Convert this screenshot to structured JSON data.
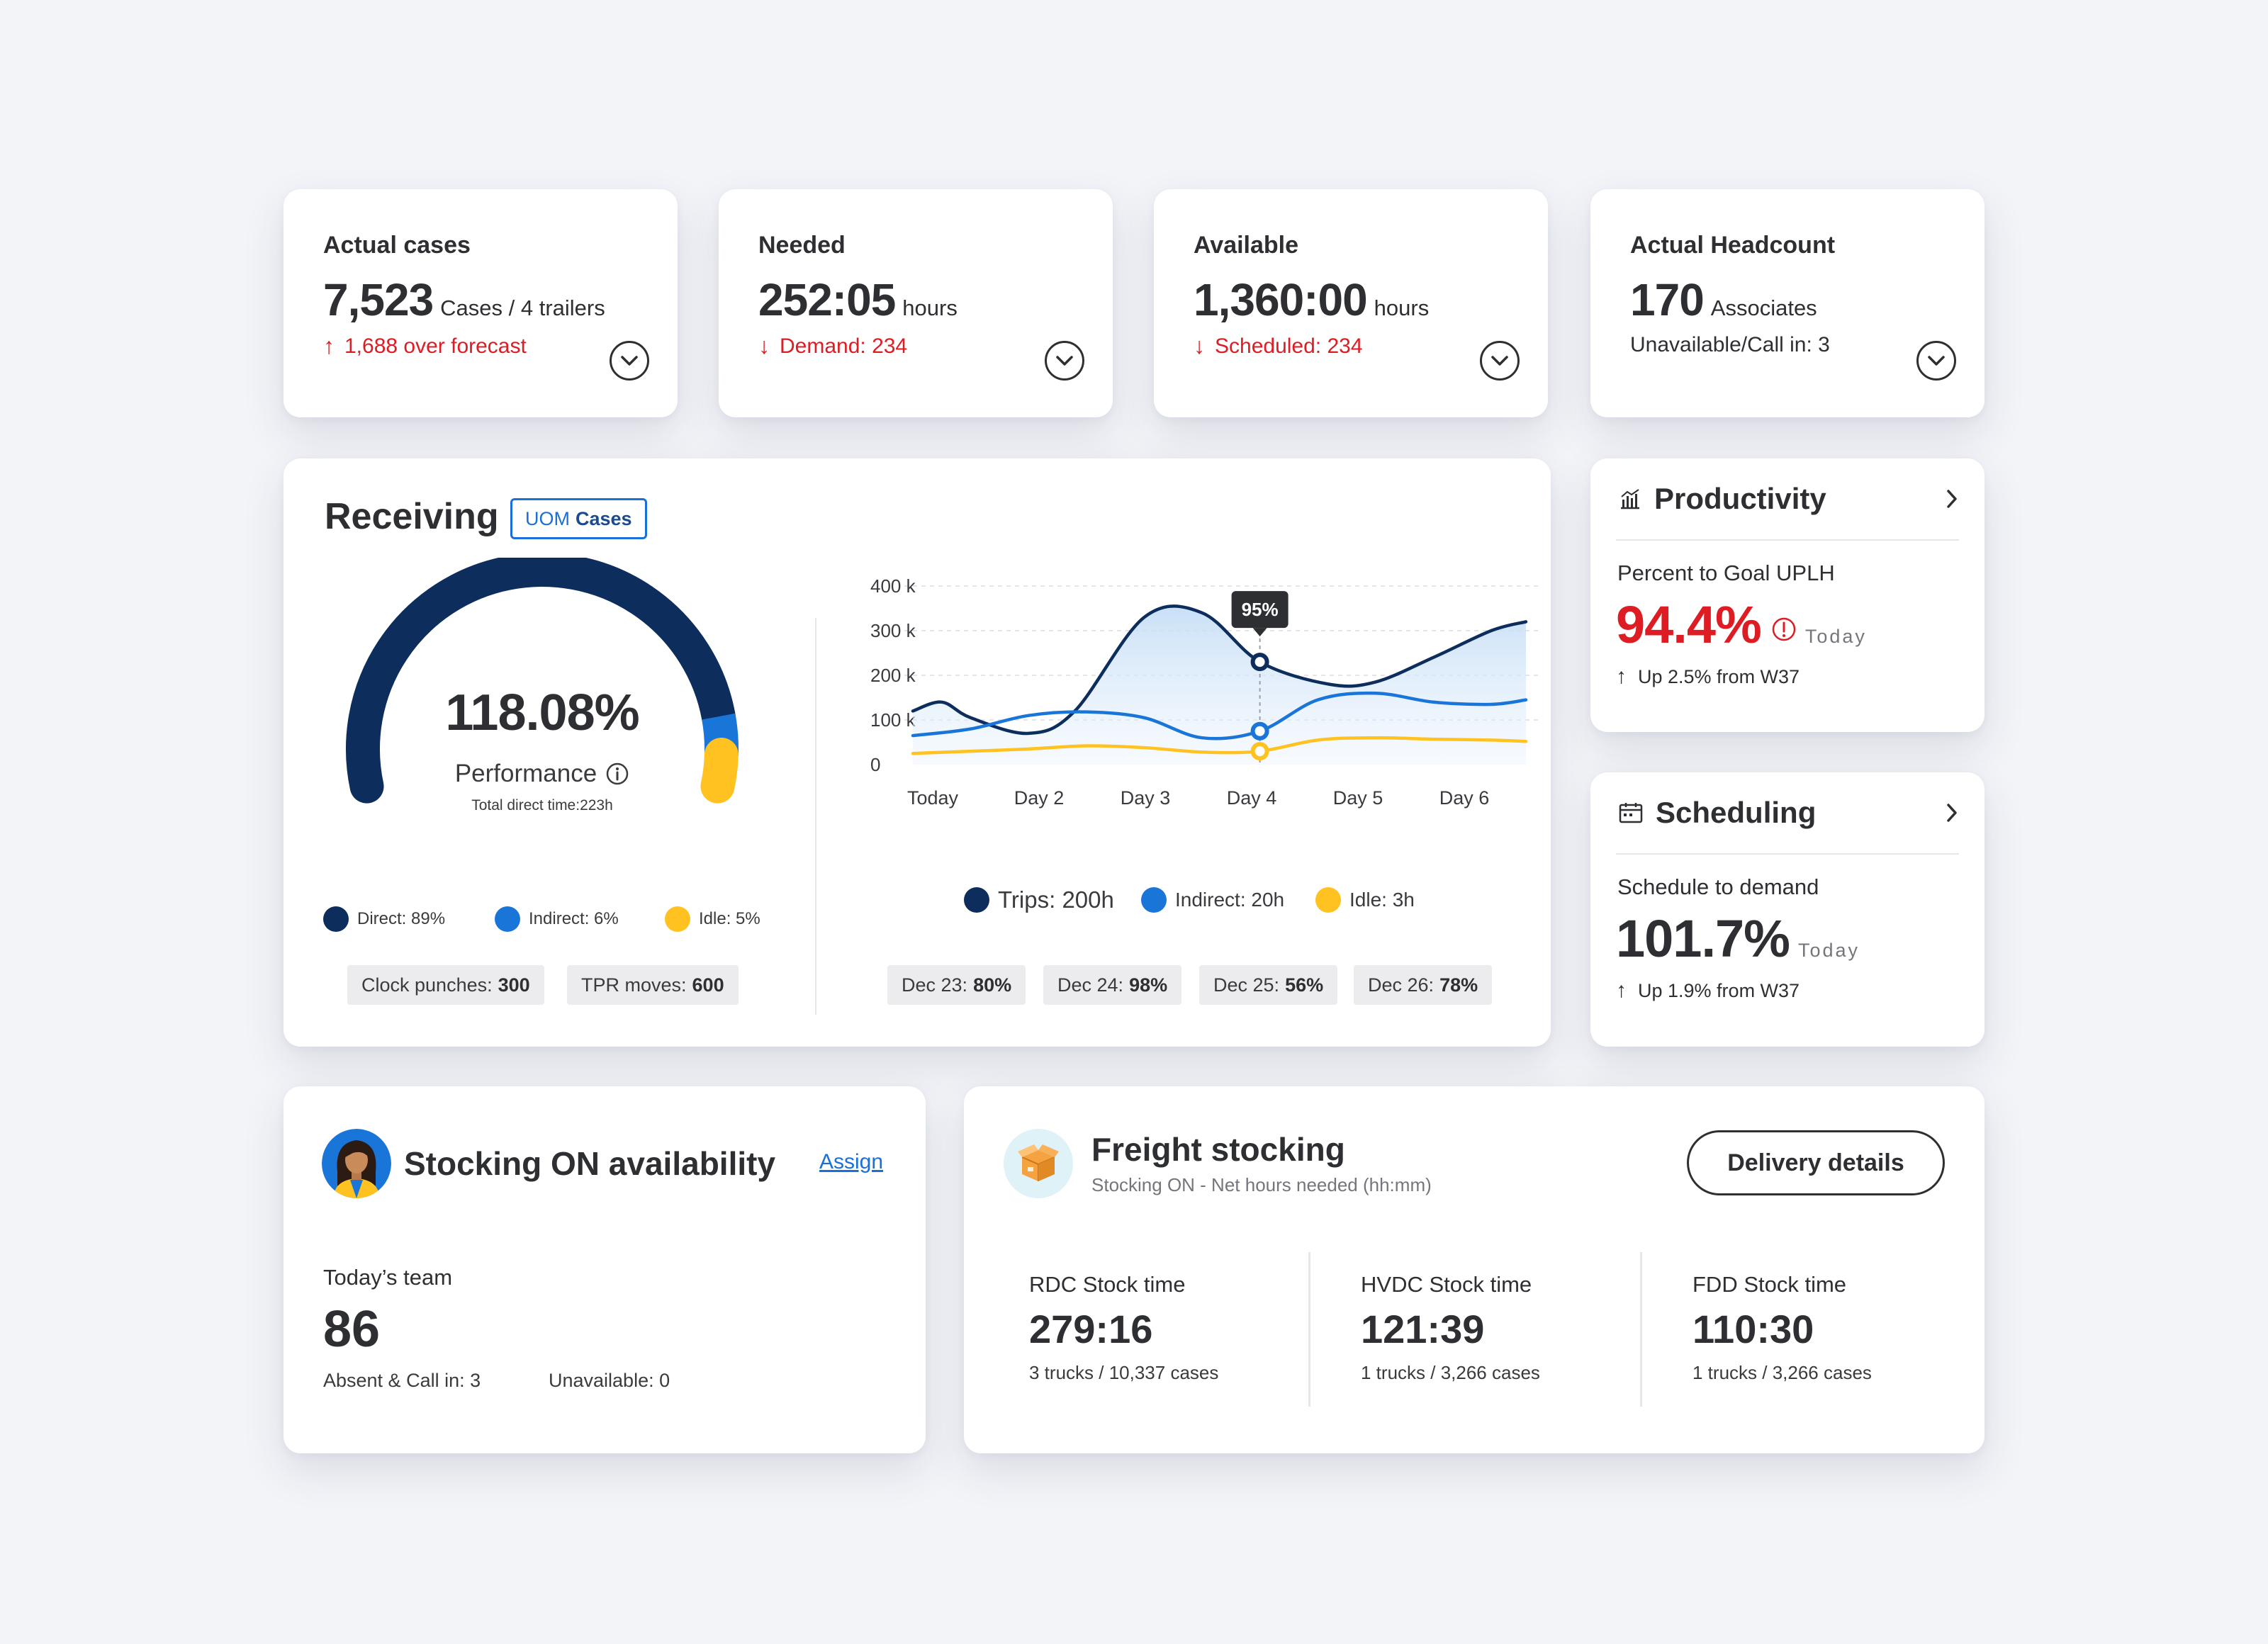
{
  "kpis": [
    {
      "title": "Actual cases",
      "value": "7,523",
      "unit": "Cases / 4 trailers",
      "sub": "1,688 over forecast",
      "sub_arrow": "↑",
      "sub_color": "#de1c24"
    },
    {
      "title": "Needed",
      "value": "252:05",
      "unit": "hours",
      "sub": "Demand: 234",
      "sub_arrow": "↓",
      "sub_color": "#de1c24"
    },
    {
      "title": "Available",
      "value": "1,360:00",
      "unit": "hours",
      "sub": "Scheduled: 234",
      "sub_arrow": "↓",
      "sub_color": "#de1c24"
    },
    {
      "title": "Actual Headcount",
      "value": "170",
      "unit": "Associates",
      "sub": "Unavailable/Call in: 3",
      "sub_arrow": "",
      "sub_color": "#2e2f32"
    }
  ],
  "receiving": {
    "title": "Receiving",
    "uom_label": "UOM",
    "uom_value": "Cases",
    "gauge": {
      "value": "118.08%",
      "label": "Performance",
      "sub": "Total direct time:223h",
      "segments": [
        {
          "name": "Direct",
          "fraction": 0.89,
          "color": "#0d2d5c"
        },
        {
          "name": "Indirect",
          "fraction": 0.06,
          "color": "#1a75d8"
        },
        {
          "name": "Idle",
          "fraction": 0.05,
          "color": "#ffc220"
        }
      ]
    },
    "legend": [
      "Direct: 89%",
      "Indirect: 6%",
      "Idle: 5%"
    ],
    "chips": [
      {
        "label": "Clock punches:",
        "value": "300"
      },
      {
        "label": "TPR moves:",
        "value": "600"
      }
    ],
    "chart_legend": [
      "Trips: 200h",
      "Indirect: 20h",
      "Idle: 3h"
    ],
    "date_chips": [
      {
        "label": "Dec 23:",
        "value": "80%"
      },
      {
        "label": "Dec 24:",
        "value": "98%"
      },
      {
        "label": "Dec 25:",
        "value": "56%"
      },
      {
        "label": "Dec 26:",
        "value": "78%"
      }
    ],
    "tooltip": "95%"
  },
  "chart_data": {
    "type": "line",
    "categories": [
      "Today",
      "Day 2",
      "Day 3",
      "Day 4",
      "Day 5",
      "Day 6"
    ],
    "yticks": [
      "400 k",
      "300 k",
      "200 k",
      "100 k",
      "0"
    ],
    "ylim": [
      0,
      400000
    ],
    "series": [
      {
        "name": "Trips: 200h",
        "color": "#0d2d5c",
        "x": [
          0,
          0.25,
          0.5,
          1.0,
          1.4,
          2.0,
          2.5,
          3.0,
          3.6,
          4.0,
          4.5,
          5.0,
          5.3
        ],
        "values": [
          120000,
          140000,
          105000,
          70000,
          120000,
          330000,
          340000,
          230000,
          180000,
          185000,
          240000,
          300000,
          320000
        ],
        "area": true
      },
      {
        "name": "Indirect: 20h",
        "color": "#1a75d8",
        "x": [
          0,
          0.5,
          1.0,
          1.5,
          2.0,
          2.5,
          3.0,
          3.5,
          4.0,
          4.5,
          5.0,
          5.3
        ],
        "values": [
          65000,
          80000,
          110000,
          118000,
          105000,
          60000,
          75000,
          145000,
          160000,
          140000,
          135000,
          145000
        ]
      },
      {
        "name": "Idle: 3h",
        "color": "#ffc220",
        "x": [
          0,
          0.5,
          1.0,
          1.5,
          2.0,
          2.5,
          3.0,
          3.5,
          4.0,
          4.5,
          5.0,
          5.3
        ],
        "values": [
          25000,
          30000,
          35000,
          42000,
          38000,
          28000,
          30000,
          55000,
          60000,
          57000,
          55000,
          52000
        ]
      }
    ],
    "highlight_x": 3.0,
    "grid": true
  },
  "productivity": {
    "title": "Productivity",
    "label": "Percent to Goal UPLH",
    "value": "94.4%",
    "today": "Today",
    "up": "Up 2.5% from W37"
  },
  "scheduling": {
    "title": "Scheduling",
    "label": "Schedule to demand",
    "value": "101.7%",
    "today": "Today",
    "up": "Up 1.9% from W37"
  },
  "stocking": {
    "title": "Stocking ON availability",
    "assign": "Assign",
    "team_label": "Today’s team",
    "team_value": "86",
    "absent": "Absent & Call in: 3",
    "unavailable": "Unavailable: 0"
  },
  "freight": {
    "title": "Freight stocking",
    "subtitle": "Stocking ON - Net hours needed (hh:mm)",
    "button": "Delivery details",
    "columns": [
      {
        "label": "RDC Stock time",
        "value": "279:16",
        "sub": "3 trucks / 10,337 cases"
      },
      {
        "label": "HVDC Stock time",
        "value": "121:39",
        "sub": "1 trucks / 3,266 cases"
      },
      {
        "label": "FDD Stock time",
        "value": "110:30",
        "sub": "1 trucks / 3,266 cases"
      }
    ]
  }
}
